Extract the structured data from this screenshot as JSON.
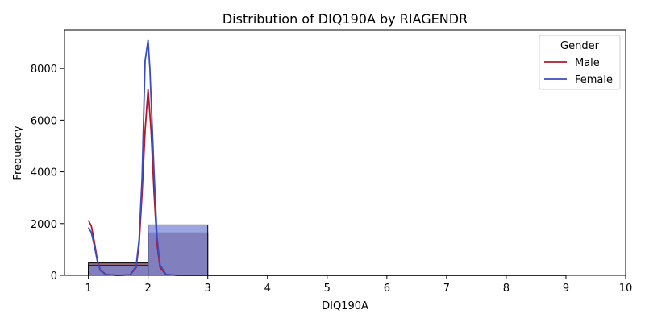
{
  "chart_data": {
    "type": "bar",
    "title": "Distribution of DIQ190A by RIAGENDR",
    "xlabel": "DIQ190A",
    "ylabel": "Frequency",
    "xlim": [
      0.6,
      10.0
    ],
    "ylim": [
      0,
      9500
    ],
    "x_ticks": [
      1,
      2,
      3,
      4,
      5,
      6,
      7,
      8,
      9,
      10
    ],
    "y_ticks": [
      0,
      2000,
      4000,
      6000,
      8000
    ],
    "legend": {
      "title": "Gender",
      "placement": "top-right",
      "entries": [
        "Male",
        "Female"
      ]
    },
    "series": [
      {
        "name": "Male",
        "color": "#b2182b",
        "bar_fill": "#8c5a66",
        "bins": [
          {
            "x0": 1,
            "x1": 2,
            "value": 480
          },
          {
            "x0": 2,
            "x1": 3,
            "value": 1640
          },
          {
            "x0": 3,
            "x1": 9,
            "value": 10
          }
        ],
        "kde": [
          [
            1.0,
            2130
          ],
          [
            1.05,
            1900
          ],
          [
            1.1,
            1300
          ],
          [
            1.15,
            600
          ],
          [
            1.2,
            200
          ],
          [
            1.3,
            30
          ],
          [
            1.5,
            0
          ],
          [
            1.7,
            20
          ],
          [
            1.8,
            300
          ],
          [
            1.85,
            1200
          ],
          [
            1.9,
            3200
          ],
          [
            1.95,
            5600
          ],
          [
            2.0,
            7200
          ],
          [
            2.05,
            5600
          ],
          [
            2.1,
            3200
          ],
          [
            2.15,
            1200
          ],
          [
            2.2,
            300
          ],
          [
            2.3,
            30
          ],
          [
            2.5,
            0
          ],
          [
            9.0,
            0
          ]
        ]
      },
      {
        "name": "Female",
        "color": "#3b4cc0",
        "bar_fill": "#7b87d8",
        "bins": [
          {
            "x0": 1,
            "x1": 2,
            "value": 380
          },
          {
            "x0": 2,
            "x1": 3,
            "value": 1950
          },
          {
            "x0": 3,
            "x1": 9,
            "value": 10
          }
        ],
        "kde": [
          [
            1.0,
            1850
          ],
          [
            1.05,
            1650
          ],
          [
            1.1,
            1150
          ],
          [
            1.15,
            550
          ],
          [
            1.2,
            180
          ],
          [
            1.3,
            25
          ],
          [
            1.5,
            0
          ],
          [
            1.7,
            20
          ],
          [
            1.8,
            350
          ],
          [
            1.85,
            1400
          ],
          [
            1.9,
            3800
          ],
          [
            1.95,
            8300
          ],
          [
            2.0,
            9100
          ],
          [
            2.03,
            8000
          ],
          [
            2.1,
            4000
          ],
          [
            2.15,
            1500
          ],
          [
            2.2,
            400
          ],
          [
            2.3,
            40
          ],
          [
            2.5,
            0
          ],
          [
            9.0,
            0
          ]
        ]
      }
    ]
  }
}
